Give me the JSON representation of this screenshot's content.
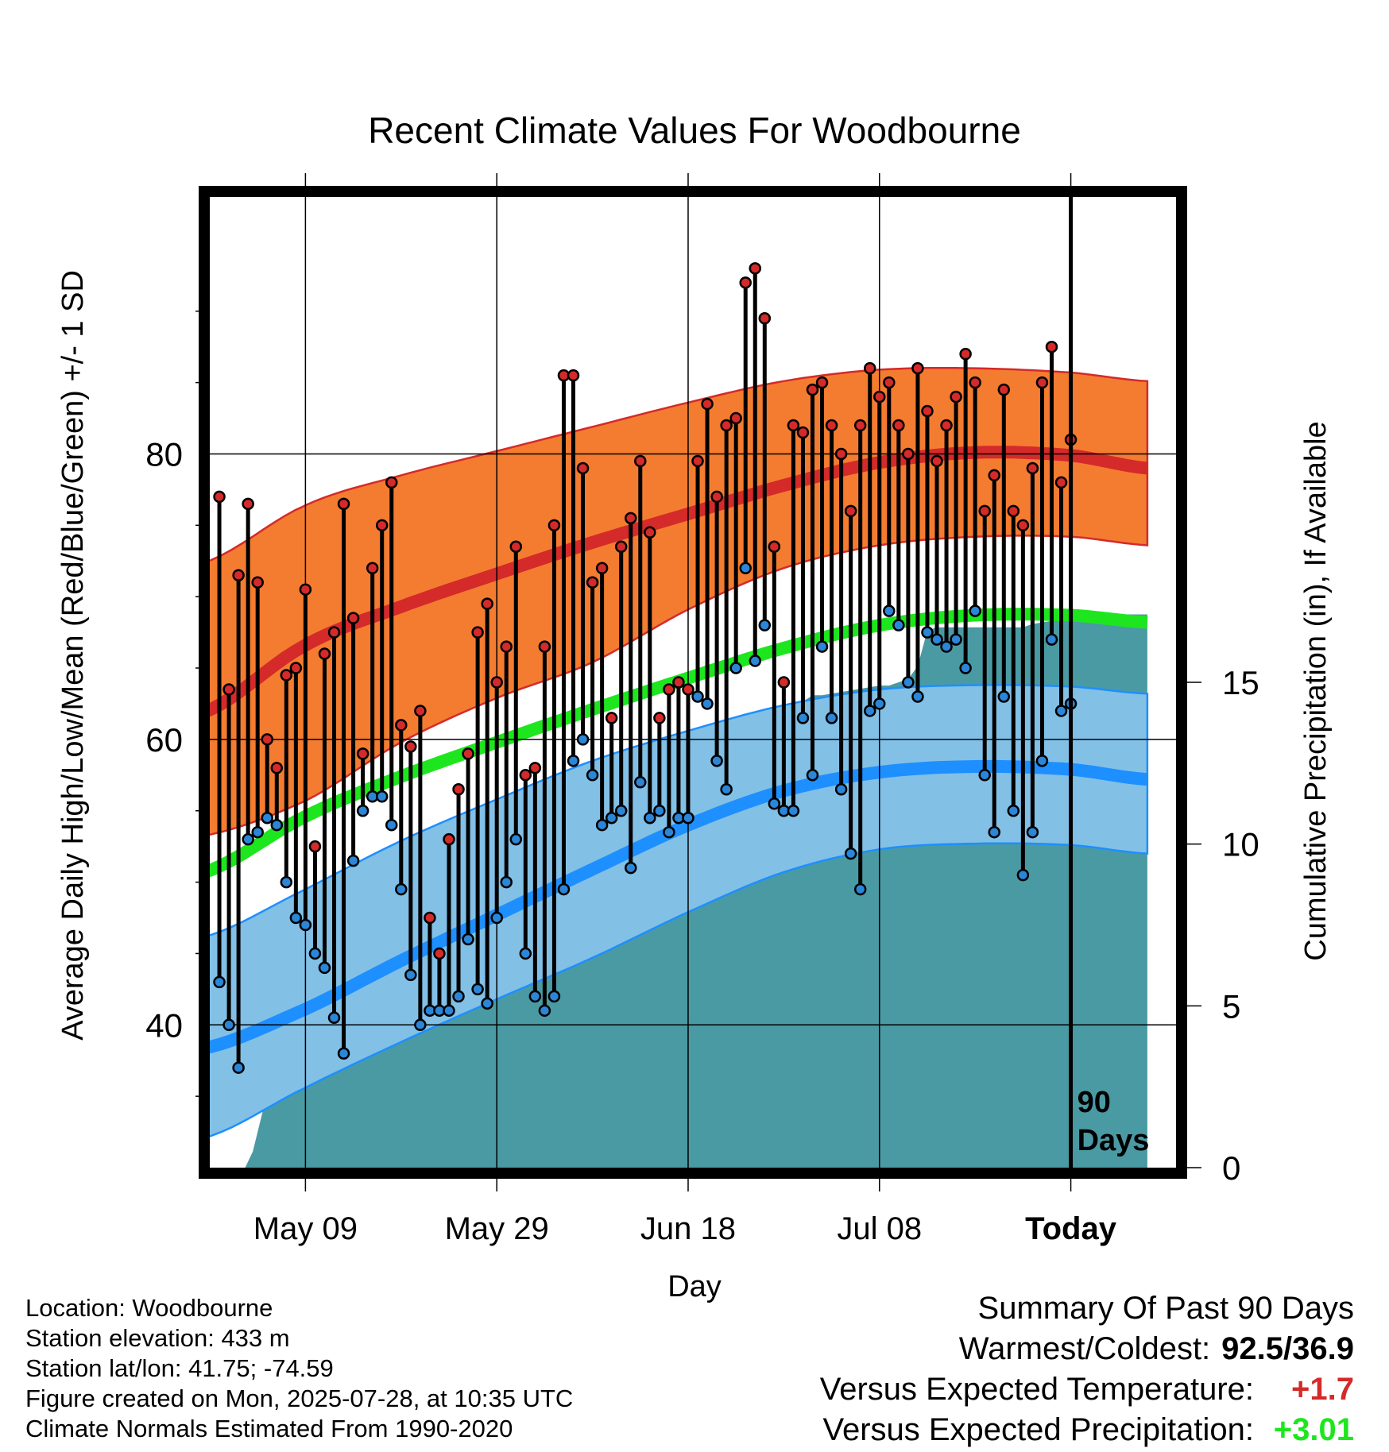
{
  "chart_data": {
    "type": "line",
    "title": "Recent Climate Values For Woodbourne",
    "xlabel": "Day",
    "ylabel": "Average Daily High/Low/Mean (Red/Blue/Green) +/- 1 SD",
    "y2label": "Cumulative Precipitation (in), If Available",
    "ylim": [
      30,
      98
    ],
    "y2lim": [
      0,
      30
    ],
    "yticks": [
      "40",
      "60",
      "80"
    ],
    "y2ticks": [
      "0",
      "5",
      "10",
      "15"
    ],
    "xlim": [
      -10,
      91
    ],
    "xticks": [
      {
        "day": 0,
        "label": "May 09"
      },
      {
        "day": 20,
        "label": "May 29"
      },
      {
        "day": 40,
        "label": "Jun 18"
      },
      {
        "day": 60,
        "label": "Jul 08"
      },
      {
        "day": 80,
        "label": "Today"
      }
    ],
    "today_day": 80,
    "period_label_line1": "90",
    "period_label_line2": "Days",
    "daily_high": [
      77.0,
      63.5,
      71.5,
      76.5,
      71.0,
      60.0,
      58.0,
      64.5,
      65.0,
      70.5,
      52.5,
      66.0,
      67.5,
      76.5,
      68.5,
      59.0,
      72.0,
      75.0,
      78.0,
      61.0,
      59.5,
      62.0,
      47.5,
      45.0,
      53.0,
      56.5,
      59.0,
      67.5,
      69.5,
      64.0,
      66.5,
      73.5,
      57.5,
      58.0,
      66.5,
      75.0,
      85.5,
      85.5,
      79.0,
      71.0,
      72.0,
      61.5,
      73.5,
      75.5,
      79.5,
      74.5,
      61.5,
      63.5,
      64.0,
      63.5,
      79.5,
      83.5,
      77.0,
      82.0,
      82.5,
      92.0,
      93.0,
      89.5,
      73.5,
      64.0,
      82.0,
      81.5,
      84.5,
      85.0,
      82.0,
      80.0,
      76.0,
      82.0,
      86.0,
      84.0,
      85.0,
      82.0,
      80.0,
      86.0,
      83.0,
      79.5,
      82.0,
      84.0,
      87.0,
      85.0,
      76.0,
      78.5,
      84.5,
      76.0,
      75.0,
      79.0,
      85.0,
      87.5,
      78.0,
      81.0
    ],
    "daily_low": [
      43.0,
      40.0,
      37.0,
      53.0,
      53.5,
      54.5,
      54.0,
      50.0,
      47.5,
      47.0,
      45.0,
      44.0,
      40.5,
      38.0,
      51.5,
      55.0,
      56.0,
      56.0,
      54.0,
      49.5,
      43.5,
      40.0,
      41.0,
      41.0,
      41.0,
      42.0,
      46.0,
      42.5,
      41.5,
      47.5,
      50.0,
      53.0,
      45.0,
      42.0,
      41.0,
      42.0,
      49.5,
      58.5,
      60.0,
      57.5,
      54.0,
      54.5,
      55.0,
      51.0,
      57.0,
      54.5,
      55.0,
      53.5,
      54.5,
      54.5,
      63.0,
      62.5,
      58.5,
      56.5,
      65.0,
      72.0,
      65.5,
      68.0,
      55.5,
      55.0,
      55.0,
      61.5,
      57.5,
      66.5,
      61.5,
      56.5,
      52.0,
      49.5,
      62.0,
      62.5,
      69.0,
      68.0,
      64.0,
      63.0,
      67.5,
      67.0,
      66.5,
      67.0,
      65.0,
      69.0,
      57.5,
      53.5,
      63.0,
      55.0,
      50.5,
      53.5,
      58.5,
      67.0,
      62.0,
      62.5
    ],
    "normals": {
      "day": [
        -11,
        0,
        10,
        20,
        30,
        40,
        50,
        60,
        70,
        80,
        88
      ],
      "high_mean": [
        61.8,
        66.6,
        69.3,
        71.6,
        73.8,
        75.8,
        77.8,
        79.4,
        80.1,
        79.9,
        79.0
      ],
      "high_sd_upper": [
        72.3,
        76.4,
        78.5,
        80.2,
        81.9,
        83.6,
        85.1,
        85.9,
        86.0,
        85.7,
        85.1
      ],
      "high_sd_lower": [
        53.2,
        55.7,
        59.8,
        62.9,
        65.4,
        69.1,
        72.0,
        73.6,
        74.2,
        74.2,
        73.6
      ],
      "low_mean": [
        38.3,
        41.1,
        44.5,
        47.7,
        50.9,
        54.0,
        56.4,
        57.7,
        58.1,
        57.9,
        57.2
      ],
      "low_sd_upper": [
        46.1,
        49.5,
        52.9,
        55.8,
        58.5,
        60.6,
        62.4,
        63.5,
        63.8,
        63.7,
        63.2
      ],
      "low_sd_lower": [
        32.0,
        35.6,
        38.8,
        41.8,
        44.7,
        47.9,
        50.7,
        52.3,
        52.7,
        52.6,
        52.0
      ],
      "overall_mean": [
        50.6,
        54.6,
        57.4,
        59.8,
        62.1,
        64.3,
        66.4,
        68.0,
        68.7,
        68.7,
        68.2
      ]
    },
    "precip_cumulative": {
      "day": [
        -6.3,
        -5.5,
        -4.5,
        -3.0,
        -2.0,
        -1.0,
        0.0,
        1.0,
        4.0,
        5.0,
        9.0,
        10.0,
        11.0,
        12.5,
        14.0,
        15.0,
        19.0,
        20.0,
        21.0,
        22.0,
        24.0,
        25.0,
        28.0,
        29.0,
        31.0,
        32.0,
        34.5,
        36.0,
        37.0,
        38.5,
        39.0,
        40.0,
        42.0,
        43.0,
        46.0,
        47.0,
        50.0,
        51.0,
        53.0,
        54.0,
        60.0,
        61.0,
        63.0,
        64.0,
        65.0,
        66.0,
        75.0,
        76.0,
        78.0,
        79.0,
        88.0
      ],
      "value": [
        0.0,
        0.5,
        1.7,
        3.2,
        3.3,
        3.8,
        5.5,
        5.5,
        5.5,
        6.3,
        6.4,
        6.4,
        7.5,
        7.6,
        7.6,
        7.7,
        7.8,
        9.4,
        9.4,
        9.6,
        9.6,
        10.5,
        10.8,
        10.8,
        11.2,
        11.2,
        11.7,
        11.9,
        12.3,
        12.6,
        13.0,
        13.1,
        13.1,
        13.5,
        13.5,
        14.1,
        14.2,
        14.2,
        14.6,
        14.6,
        14.9,
        14.9,
        15.1,
        15.5,
        16.6,
        16.7,
        16.7,
        16.8,
        16.9,
        17.1,
        17.1
      ]
    },
    "colors": {
      "high_band": "#f47c30",
      "high_line": "#d42a2a",
      "low_band": "#82c0e6",
      "low_line": "#1e8fff",
      "mean_line": "#1ee61e",
      "precip": "#4a9aa4",
      "high_dot": "#d42a2a",
      "low_dot": "#2b86d8"
    }
  },
  "info": {
    "location": "Location: Woodbourne",
    "elevation": "Station elevation: 433 m",
    "latlon": "Station lat/lon: 41.75; -74.59",
    "created": "Figure created on Mon, 2025-07-28, at 10:35 UTC",
    "normals": "Climate Normals Estimated From 1990-2020"
  },
  "summary": {
    "heading": "Summary Of Past 90 Days",
    "warm_cold_label": "Warmest/Coldest:",
    "warm_cold_value": "92.5/36.9",
    "temp_label": "Versus Expected Temperature:",
    "temp_value": "+1.7",
    "temp_color": "#d42a2a",
    "precip_label": "Versus Expected Precipitation:",
    "precip_value": "+3.01",
    "precip_color": "#1ee61e"
  }
}
